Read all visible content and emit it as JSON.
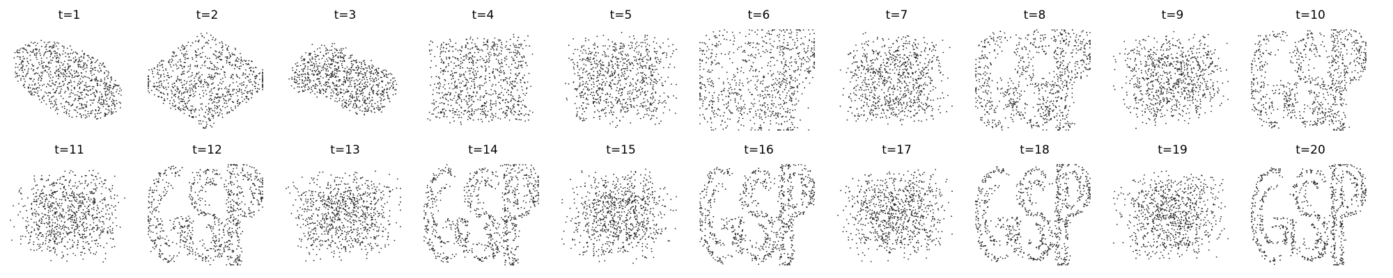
{
  "chart_data": {
    "type": "scatter",
    "layout": "2x10 grid of small scatter panels, axes hidden",
    "point_color": "#222222",
    "axes_visible": false,
    "grid": false,
    "xlim": [
      0,
      1
    ],
    "ylim": [
      0,
      1
    ],
    "point_cloud": "letters-GSP",
    "panels": [
      {
        "title": "t=1",
        "t": 1,
        "shape": "blob-tilted",
        "letter_clarity": 0.0
      },
      {
        "title": "t=2",
        "t": 2,
        "shape": "blob-diamond",
        "letter_clarity": 0.0
      },
      {
        "title": "t=3",
        "t": 3,
        "shape": "blob-wide",
        "letter_clarity": 0.05
      },
      {
        "title": "t=4",
        "t": 4,
        "shape": "blob-rect",
        "letter_clarity": 0.12
      },
      {
        "title": "t=5",
        "t": 5,
        "shape": "wavy",
        "letter_clarity": 0.2
      },
      {
        "title": "t=6",
        "t": 6,
        "shape": "letters",
        "letter_clarity": 0.45
      },
      {
        "title": "t=7",
        "t": 7,
        "shape": "wavy",
        "letter_clarity": 0.25
      },
      {
        "title": "t=8",
        "t": 8,
        "shape": "letters",
        "letter_clarity": 0.75
      },
      {
        "title": "t=9",
        "t": 9,
        "shape": "wavy",
        "letter_clarity": 0.3
      },
      {
        "title": "t=10",
        "t": 10,
        "shape": "letters",
        "letter_clarity": 0.85
      },
      {
        "title": "t=11",
        "t": 11,
        "shape": "wavy",
        "letter_clarity": 0.3
      },
      {
        "title": "t=12",
        "t": 12,
        "shape": "letters",
        "letter_clarity": 0.9
      },
      {
        "title": "t=13",
        "t": 13,
        "shape": "wavy",
        "letter_clarity": 0.32
      },
      {
        "title": "t=14",
        "t": 14,
        "shape": "letters",
        "letter_clarity": 0.93
      },
      {
        "title": "t=15",
        "t": 15,
        "shape": "wavy",
        "letter_clarity": 0.33
      },
      {
        "title": "t=16",
        "t": 16,
        "shape": "letters",
        "letter_clarity": 0.95
      },
      {
        "title": "t=17",
        "t": 17,
        "shape": "wavy",
        "letter_clarity": 0.34
      },
      {
        "title": "t=18",
        "t": 18,
        "shape": "letters",
        "letter_clarity": 0.97
      },
      {
        "title": "t=19",
        "t": 19,
        "shape": "wavy",
        "letter_clarity": 0.35
      },
      {
        "title": "t=20",
        "t": 20,
        "shape": "letters",
        "letter_clarity": 0.98
      }
    ]
  }
}
